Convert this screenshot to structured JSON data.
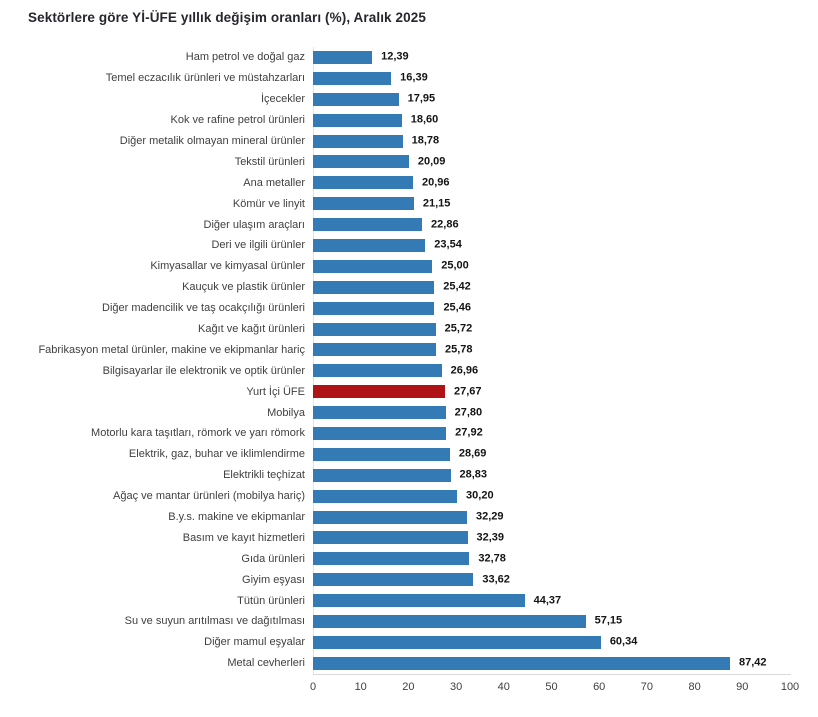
{
  "title": "Sektörlere göre Yİ-ÜFE yıllık değişim oranları (%), Aralık 2025",
  "colors": {
    "bar": "#347AB5",
    "highlight_bar": "#B01316",
    "axis_line": "#E4E4E4",
    "value_text": "#141414",
    "category_text": "#3F3F3F",
    "title_text": "#26262E"
  },
  "chart_data": {
    "type": "bar",
    "orientation": "horizontal",
    "title": "Sektörlere göre Yİ-ÜFE yıllık değişim oranları (%), Aralık 2025",
    "xlabel": "",
    "ylabel": "",
    "xlim": [
      0,
      100
    ],
    "x_ticks": [
      "0",
      "10",
      "20",
      "30",
      "40",
      "50",
      "60",
      "70",
      "80",
      "90",
      "100"
    ],
    "grid": false,
    "legend": "none",
    "highlight_category": "Yurt İçi ÜFE",
    "highlight_index": 16,
    "categories": [
      "Ham petrol ve doğal gaz",
      "Temel eczacılık ürünleri ve müstahzarları",
      "İçecekler",
      "Kok ve rafine petrol ürünleri",
      "Diğer metalik olmayan mineral ürünler",
      "Tekstil ürünleri",
      "Ana metaller",
      "Kömür ve linyit",
      "Diğer ulaşım araçları",
      "Deri ve ilgili ürünler",
      "Kimyasallar ve kimyasal ürünler",
      "Kauçuk ve plastik ürünler",
      "Diğer madencilik ve taş ocakçılığı ürünleri",
      "Kağıt ve kağıt ürünleri",
      "Fabrikasyon metal ürünler, makine ve ekipmanlar hariç",
      "Bilgisayarlar ile elektronik ve optik ürünler",
      "Yurt İçi ÜFE",
      "Mobilya",
      "Motorlu kara taşıtları, römork ve yarı römork",
      "Elektrik, gaz, buhar ve iklimlendirme",
      "Elektrikli teçhizat",
      "Ağaç ve mantar ürünleri (mobilya hariç)",
      "B.y.s. makine ve ekipmanlar",
      "Basım ve kayıt hizmetleri",
      "Gıda ürünleri",
      "Giyim eşyası",
      "Tütün ürünleri",
      "Su ve suyun arıtılması ve dağıtılması",
      "Diğer mamul eşyalar",
      "Metal cevherleri"
    ],
    "values": [
      12.39,
      16.39,
      17.95,
      18.6,
      18.78,
      20.09,
      20.96,
      21.15,
      22.86,
      23.54,
      25.0,
      25.42,
      25.46,
      25.72,
      25.78,
      26.96,
      27.67,
      27.8,
      27.92,
      28.69,
      28.83,
      30.2,
      32.29,
      32.39,
      32.78,
      33.62,
      44.37,
      57.15,
      60.34,
      87.42
    ],
    "value_labels": [
      "12,39",
      "16,39",
      "17,95",
      "18,60",
      "18,78",
      "20,09",
      "20,96",
      "21,15",
      "22,86",
      "23,54",
      "25,00",
      "25,42",
      "25,46",
      "25,72",
      "25,78",
      "26,96",
      "27,67",
      "27,80",
      "27,92",
      "28,69",
      "28,83",
      "30,20",
      "32,29",
      "32,39",
      "32,78",
      "33,62",
      "44,37",
      "57,15",
      "60,34",
      "87,42"
    ]
  }
}
